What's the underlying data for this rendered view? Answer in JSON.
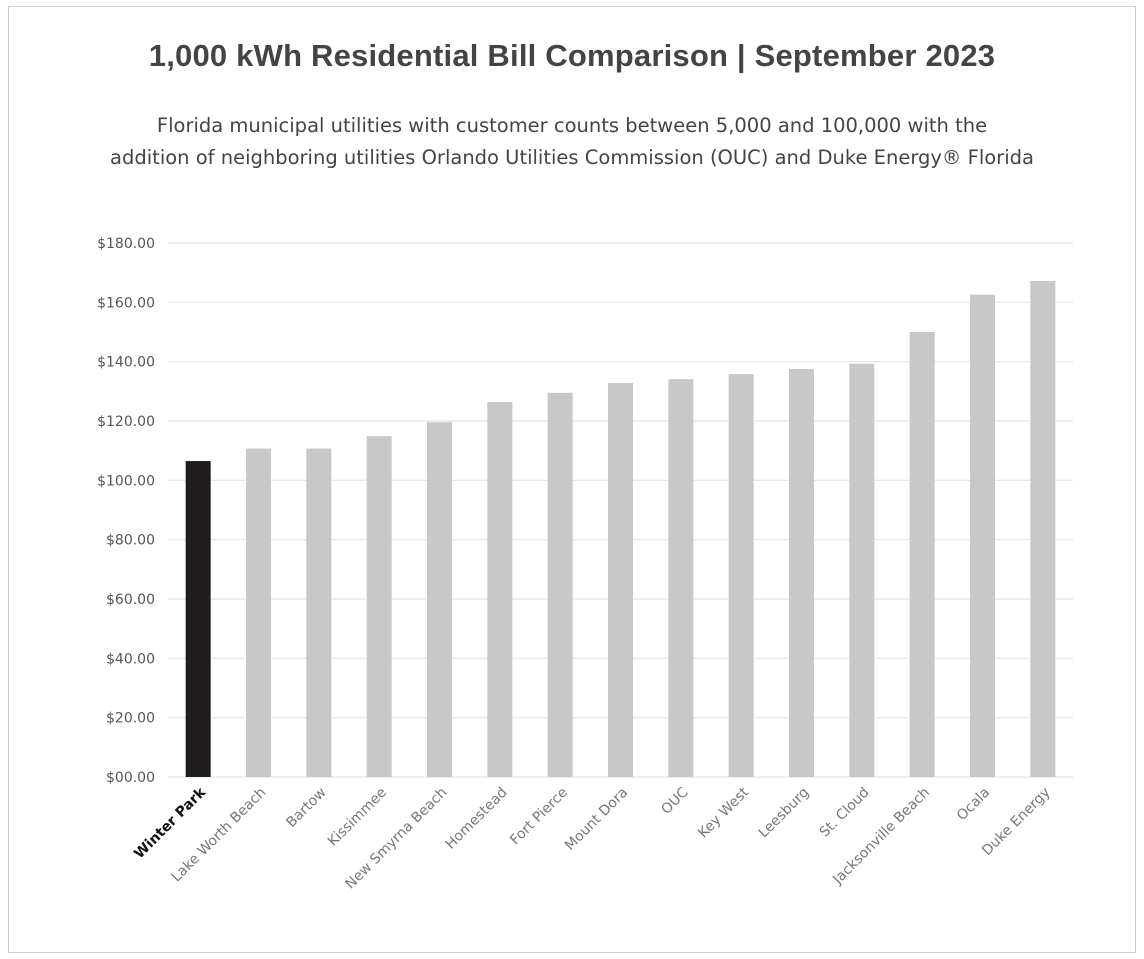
{
  "chart_data": {
    "type": "bar",
    "title": "1,000 kWh Residential Bill Comparison | September 2023",
    "subtitle_lines": [
      "Florida municipal utilities with customer counts between 5,000 and 100,000 with the",
      "addition of neighboring utilities Orlando Utilities Commission (OUC) and Duke Energy® Florida"
    ],
    "categories": [
      "Winter Park",
      "Lake Worth Beach",
      "Bartow",
      "Kissimmee",
      "New Smyrna Beach",
      "Homestead",
      "Fort Pierce",
      "Mount Dora",
      "OUC",
      "Key West",
      "Leesburg",
      "St. Cloud",
      "Jacksonville Beach",
      "Ocala",
      "Duke Energy"
    ],
    "values": [
      106.5,
      110.7,
      110.7,
      114.9,
      119.6,
      126.4,
      129.5,
      132.8,
      134.1,
      135.8,
      137.5,
      139.3,
      150.0,
      162.6,
      167.2
    ],
    "highlight_category": "Winter Park",
    "ylim": [
      0,
      180
    ],
    "yticks": [
      0,
      20,
      40,
      60,
      80,
      100,
      120,
      140,
      160,
      180
    ],
    "ytick_labels": [
      "$00.00",
      "$20.00",
      "$40.00",
      "$60.00",
      "$80.00",
      "$100.00",
      "$120.00",
      "$140.00",
      "$160.00",
      "$180.00"
    ],
    "grid": true,
    "legend": "none",
    "colors": {
      "highlight_bar": "#1f1c1d",
      "bar": "#c8c8c8",
      "grid": "#e4e4e4",
      "text": "#444444"
    }
  }
}
